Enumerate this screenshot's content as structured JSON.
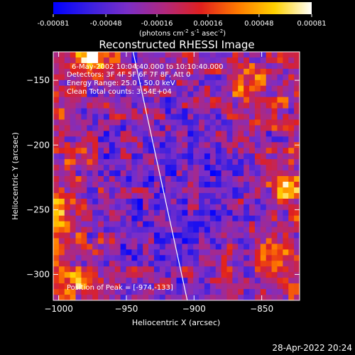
{
  "colorbar": {
    "ticks": [
      "-0.00081",
      "-0.00048",
      "-0.00016",
      "0.00016",
      "0.00048",
      "0.00081"
    ],
    "tick_values": [
      -0.00081,
      -0.00048,
      -0.00016,
      0.00016,
      0.00048,
      0.00081
    ],
    "range": [
      -0.00081,
      0.00081
    ],
    "colormap": [
      "#0000ff",
      "#3a20e0",
      "#7a2ec8",
      "#b0287e",
      "#e0201e",
      "#ff7a00",
      "#ffd200",
      "#ffffff"
    ],
    "units_main": "(photons cm",
    "units_exp1": "-2",
    "units_mid": " s",
    "units_exp2": "-1",
    "units_mid2": " asec",
    "units_exp3": "-2",
    "units_end": ")"
  },
  "title": "Reconstructed RHESSI Image",
  "info_lines": [
    "6-May-2002 10:04:40.000 to 10:10:40.000",
    "Detectors: 3F 4F 5F 6F 7F 8F, Att 0",
    "Energy Range: 25.0 - 50.0 keV",
    "Clean      Total counts: 3.54E+04"
  ],
  "peak_label": "Position of Peak = [-974,-133]",
  "timestamp": "28-Apr-2022 20:24",
  "chart_data": {
    "type": "heatmap",
    "title": "Reconstructed RHESSI Image",
    "xlabel": "Heliocentric X (arcsec)",
    "ylabel": "Heliocentric Y (arcsec)",
    "xlim": [
      -1004,
      -822
    ],
    "ylim": [
      -320,
      -128
    ],
    "x_ticks": [
      -1000,
      -950,
      -900,
      -850
    ],
    "y_ticks": [
      -150,
      -200,
      -250,
      -300
    ],
    "x_tick_labels": [
      "−1000",
      "−950",
      "−900",
      "−850"
    ],
    "y_tick_labels": [
      "−150",
      "−200",
      "−250",
      "−300"
    ],
    "peak_position": [
      -974,
      -133
    ],
    "limb_line": [
      [
        -945,
        -128
      ],
      [
        -905,
        -320
      ]
    ],
    "grid": false
  }
}
